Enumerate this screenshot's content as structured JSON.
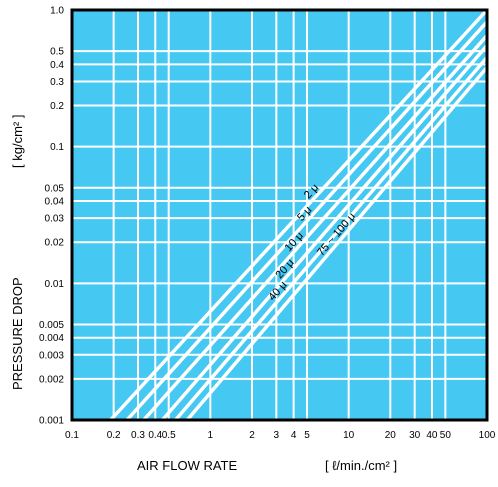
{
  "chart_data": {
    "type": "line",
    "xscale": "log",
    "yscale": "log",
    "xlim": [
      0.1,
      100
    ],
    "ylim": [
      0.001,
      1.0
    ],
    "grid": true,
    "background_color": "#45c8f2",
    "line_color": "#ffffff",
    "frame_color": "#000000",
    "xlabel": "AIR FLOW RATE",
    "xunit": "[ ℓ/min./cm² ]",
    "ylabel": "PRESSURE DROP",
    "yunit": "[ kg/cm² ]",
    "x_ticks": [
      {
        "value": 0.1,
        "label": "0.1"
      },
      {
        "value": 0.2,
        "label": "0.2"
      },
      {
        "value": 0.3,
        "label": "0.3"
      },
      {
        "value": 0.4,
        "label": "0.4"
      },
      {
        "value": 0.5,
        "label": "0.5"
      },
      {
        "value": 1,
        "label": "1"
      },
      {
        "value": 2,
        "label": "2"
      },
      {
        "value": 3,
        "label": "3"
      },
      {
        "value": 4,
        "label": "4"
      },
      {
        "value": 5,
        "label": "5"
      },
      {
        "value": 10,
        "label": "10"
      },
      {
        "value": 20,
        "label": "20"
      },
      {
        "value": 30,
        "label": "30"
      },
      {
        "value": 40,
        "label": "40"
      },
      {
        "value": 50,
        "label": "50"
      },
      {
        "value": 100,
        "label": "100"
      }
    ],
    "y_ticks": [
      {
        "value": 0.001,
        "label": "0.001"
      },
      {
        "value": 0.002,
        "label": "0.002"
      },
      {
        "value": 0.003,
        "label": "0.003"
      },
      {
        "value": 0.004,
        "label": "0.004"
      },
      {
        "value": 0.005,
        "label": "0.005"
      },
      {
        "value": 0.01,
        "label": "0.01"
      },
      {
        "value": 0.02,
        "label": "0.02"
      },
      {
        "value": 0.03,
        "label": "0.03"
      },
      {
        "value": 0.04,
        "label": "0.04"
      },
      {
        "value": 0.05,
        "label": "0.05"
      },
      {
        "value": 0.1,
        "label": "0.1"
      },
      {
        "value": 0.2,
        "label": "0.2"
      },
      {
        "value": 0.3,
        "label": "0.3"
      },
      {
        "value": 0.4,
        "label": "0.4"
      },
      {
        "value": 0.5,
        "label": "0.5"
      },
      {
        "value": 1.0,
        "label": "1.0"
      }
    ],
    "series": [
      {
        "name": "2 μ",
        "x": [
          0.19,
          100
        ],
        "y": [
          0.001,
          1.0
        ]
      },
      {
        "name": "5 μ",
        "x": [
          0.25,
          100
        ],
        "y": [
          0.001,
          0.82
        ]
      },
      {
        "name": "10 μ",
        "x": [
          0.33,
          100
        ],
        "y": [
          0.001,
          0.65
        ]
      },
      {
        "name": "20 μ",
        "x": [
          0.45,
          100
        ],
        "y": [
          0.001,
          0.55
        ]
      },
      {
        "name": "40 μ",
        "x": [
          0.56,
          100
        ],
        "y": [
          0.001,
          0.45
        ]
      },
      {
        "name": "75 ~ 100 μ",
        "x": [
          0.68,
          100
        ],
        "y": [
          0.001,
          0.38
        ]
      }
    ]
  }
}
